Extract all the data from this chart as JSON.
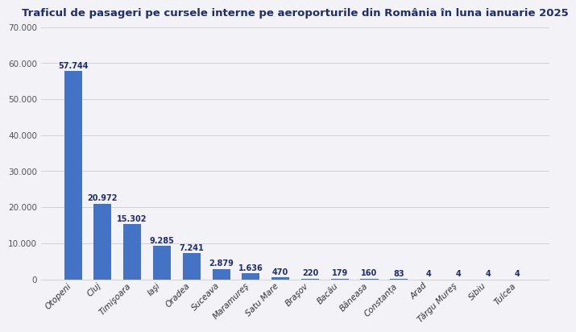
{
  "title": "Traficul de pasageri pe cursele interne pe aeroporturile din România în luna ianuarie 2025",
  "categories": [
    "Otopeni",
    "Cluj",
    "Timişoara",
    "Iaşi",
    "Oradea",
    "Suceava",
    "Maramureş",
    "Satu Mare",
    "Braşov",
    "Bacău",
    "Băneasa",
    "Constanța",
    "Arad",
    "Târgu Mureş",
    "Sibiu",
    "Tulcea"
  ],
  "values": [
    57744,
    20972,
    15302,
    9285,
    7241,
    2879,
    1636,
    470,
    220,
    179,
    160,
    83,
    4,
    4,
    4,
    4
  ],
  "labels": [
    "57.744",
    "20.972",
    "15.302",
    "9.285",
    "7.241",
    "2.879",
    "1.636",
    "470",
    "220",
    "179",
    "160",
    "83",
    "4",
    "4",
    "4",
    "4"
  ],
  "bar_color": "#4472C4",
  "background_color": "#f2f2f7",
  "plot_bg_color": "#f2f2f7",
  "title_color": "#1f2d6e",
  "ylim": [
    0,
    70000
  ],
  "yticks": [
    0,
    10000,
    20000,
    30000,
    40000,
    50000,
    60000,
    70000
  ],
  "ytick_labels": [
    "0",
    "10.000",
    "20.000",
    "30.000",
    "40.000",
    "50.000",
    "60.000",
    "70.000"
  ],
  "title_fontsize": 9.5,
  "label_fontsize": 7,
  "tick_fontsize": 7.5
}
